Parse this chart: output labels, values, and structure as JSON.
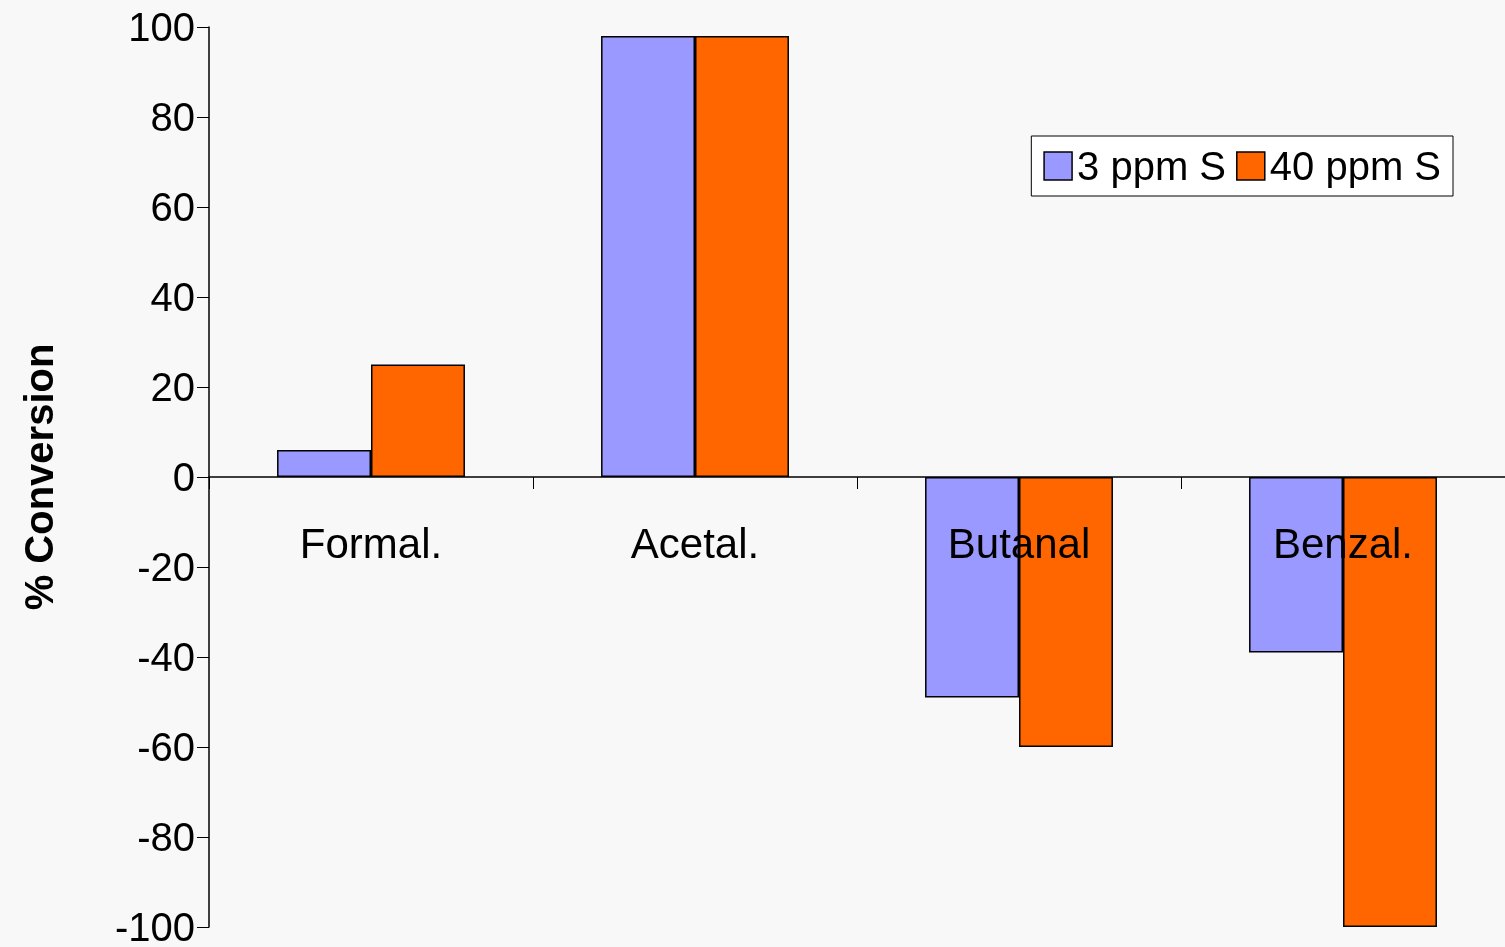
{
  "chart_data": {
    "type": "bar",
    "ylabel": "% Conversion",
    "categories": [
      "Formal.",
      "Acetal.",
      "Butanal",
      "Benzal."
    ],
    "series": [
      {
        "name": "3 ppm S",
        "color": "#9999ff",
        "values": [
          6,
          98,
          -49,
          -39
        ]
      },
      {
        "name": "40 ppm S",
        "color": "#ff6600",
        "values": [
          25,
          98,
          -60,
          -100
        ]
      }
    ],
    "ylim": [
      -100,
      100
    ],
    "yticks": [
      -100,
      -80,
      -60,
      -40,
      -20,
      0,
      20,
      40,
      60,
      80,
      100
    ],
    "grid": false,
    "legend": "top right"
  }
}
